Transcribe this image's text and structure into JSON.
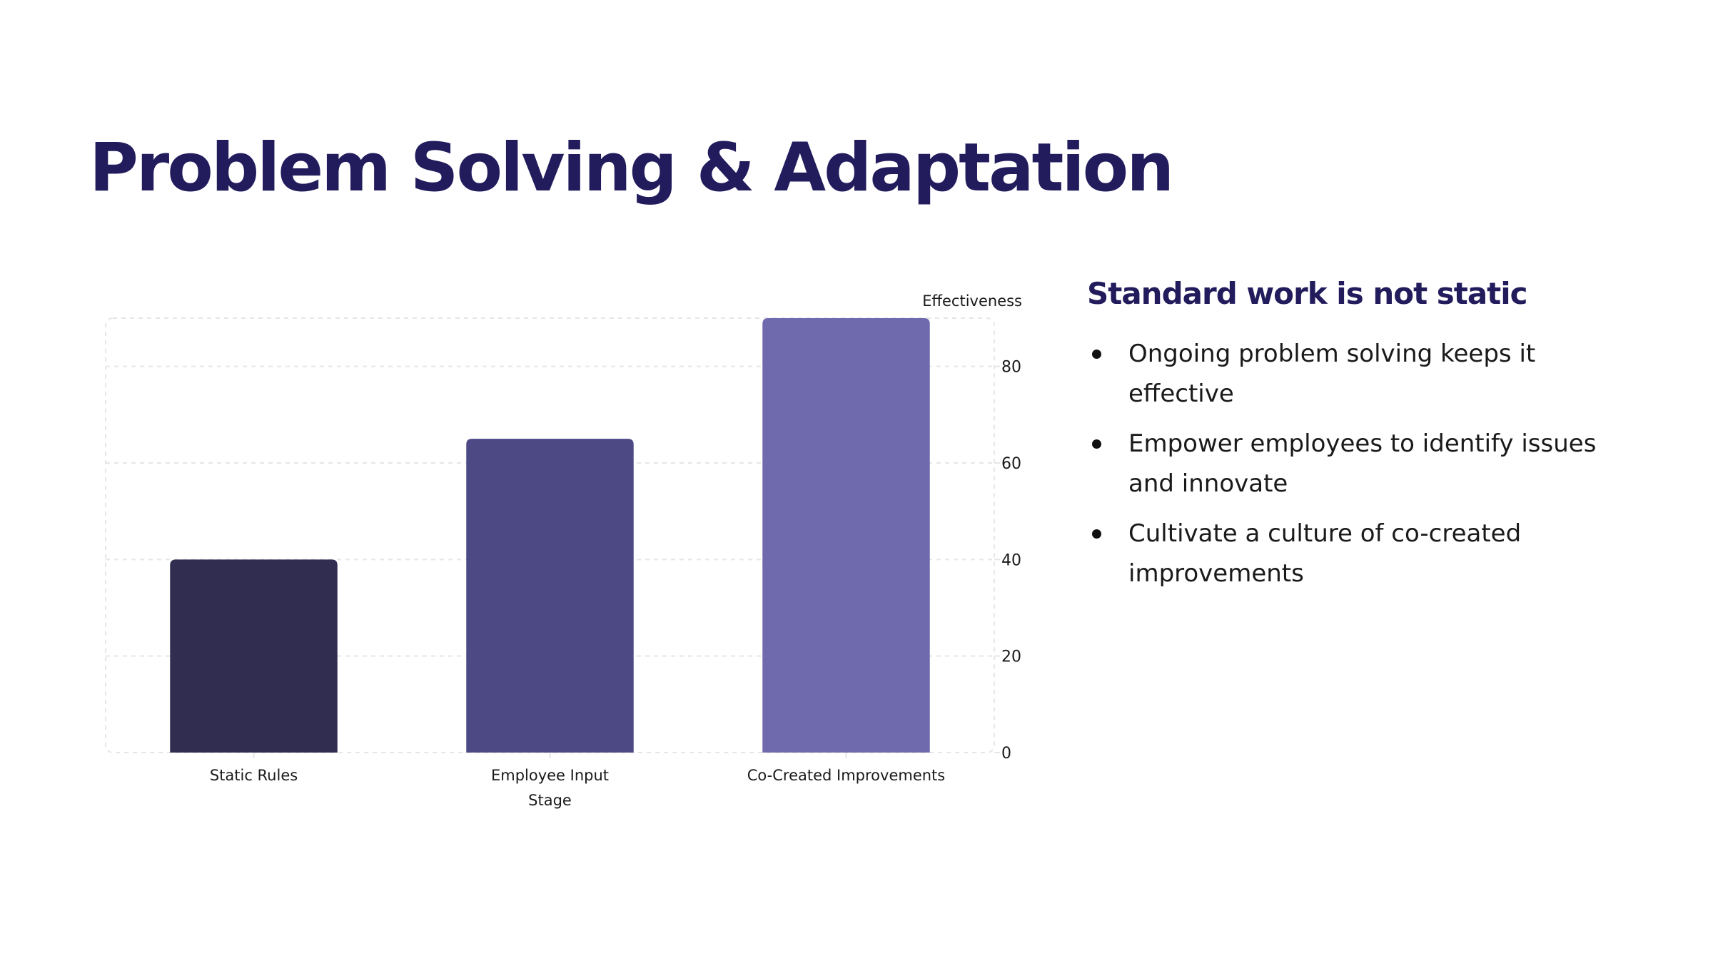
{
  "slide": {
    "title": "Problem Solving & Adaptation"
  },
  "side_panel": {
    "heading": "Standard work is not static",
    "bullets": [
      "Ongoing problem solving keeps it effective",
      "Empower employees to identify issues and innovate",
      "Cultivate a culture of co-created improvements"
    ]
  },
  "chart_data": {
    "type": "bar",
    "title": "",
    "xlabel": "Stage",
    "ylabel": "Effectiveness",
    "categories": [
      "Static Rules",
      "Employee Input",
      "Co-Created Improvements"
    ],
    "values": [
      40,
      65,
      90
    ],
    "ylim": [
      0,
      90
    ],
    "yticks": [
      0,
      20,
      40,
      60,
      80
    ],
    "y_axis_side": "right",
    "grid": true,
    "legend": false,
    "colors": [
      "#302d50",
      "#4c4984",
      "#6f6aae"
    ],
    "grid_color": "#e6e6e6"
  }
}
